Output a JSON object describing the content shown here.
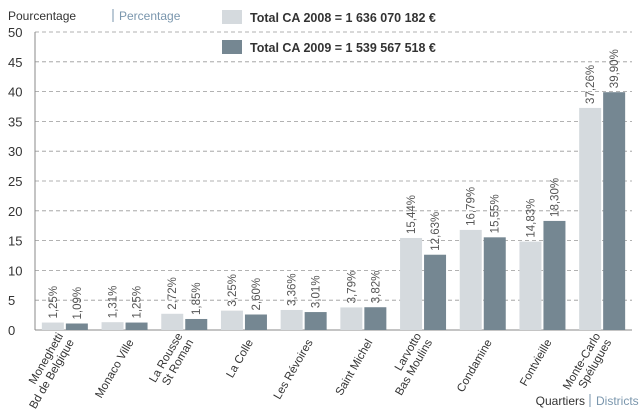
{
  "chart_data": {
    "type": "bar",
    "y_label": "Pourcentage",
    "y_label_en": "Percentage",
    "x_label": "Quartiers",
    "x_label_en": "Districts",
    "categories": [
      "Moneghetti\nBd de Belgique",
      "Monaco Ville",
      "La Rousse\nSt Roman",
      "La Colle",
      "Les Révoires",
      "Saint Michel",
      "Larvotto\nBas Moulins",
      "Condamine",
      "Fontvieille",
      "Monte-Carlo\nSpélugues"
    ],
    "series": [
      {
        "name": "Total CA 2008 = 1 636 070 182 €",
        "color": "#d5dade",
        "values": [
          1.25,
          1.31,
          2.72,
          3.25,
          3.36,
          3.79,
          15.44,
          16.79,
          14.83,
          37.26
        ],
        "value_labels": [
          "1,25%",
          "1,31%",
          "2,72%",
          "3,25%",
          "3,36%",
          "3,79%",
          "15,44%",
          "16,79%",
          "14,83%",
          "37,26%"
        ]
      },
      {
        "name": "Total CA 2009 = 1 539 567 518 €",
        "color": "#758792",
        "values": [
          1.09,
          1.25,
          1.85,
          2.6,
          3.01,
          3.82,
          12.63,
          15.55,
          18.3,
          39.9
        ],
        "value_labels": [
          "1,09%",
          "1,25%",
          "1,85%",
          "2,60%",
          "3,01%",
          "3,82%",
          "12,63%",
          "15,55%",
          "18,30%",
          "39,90%"
        ]
      }
    ],
    "ylim": [
      0,
      50
    ],
    "yticks": [
      0,
      5,
      10,
      15,
      20,
      25,
      30,
      35,
      40,
      45,
      50
    ],
    "grid": true
  }
}
